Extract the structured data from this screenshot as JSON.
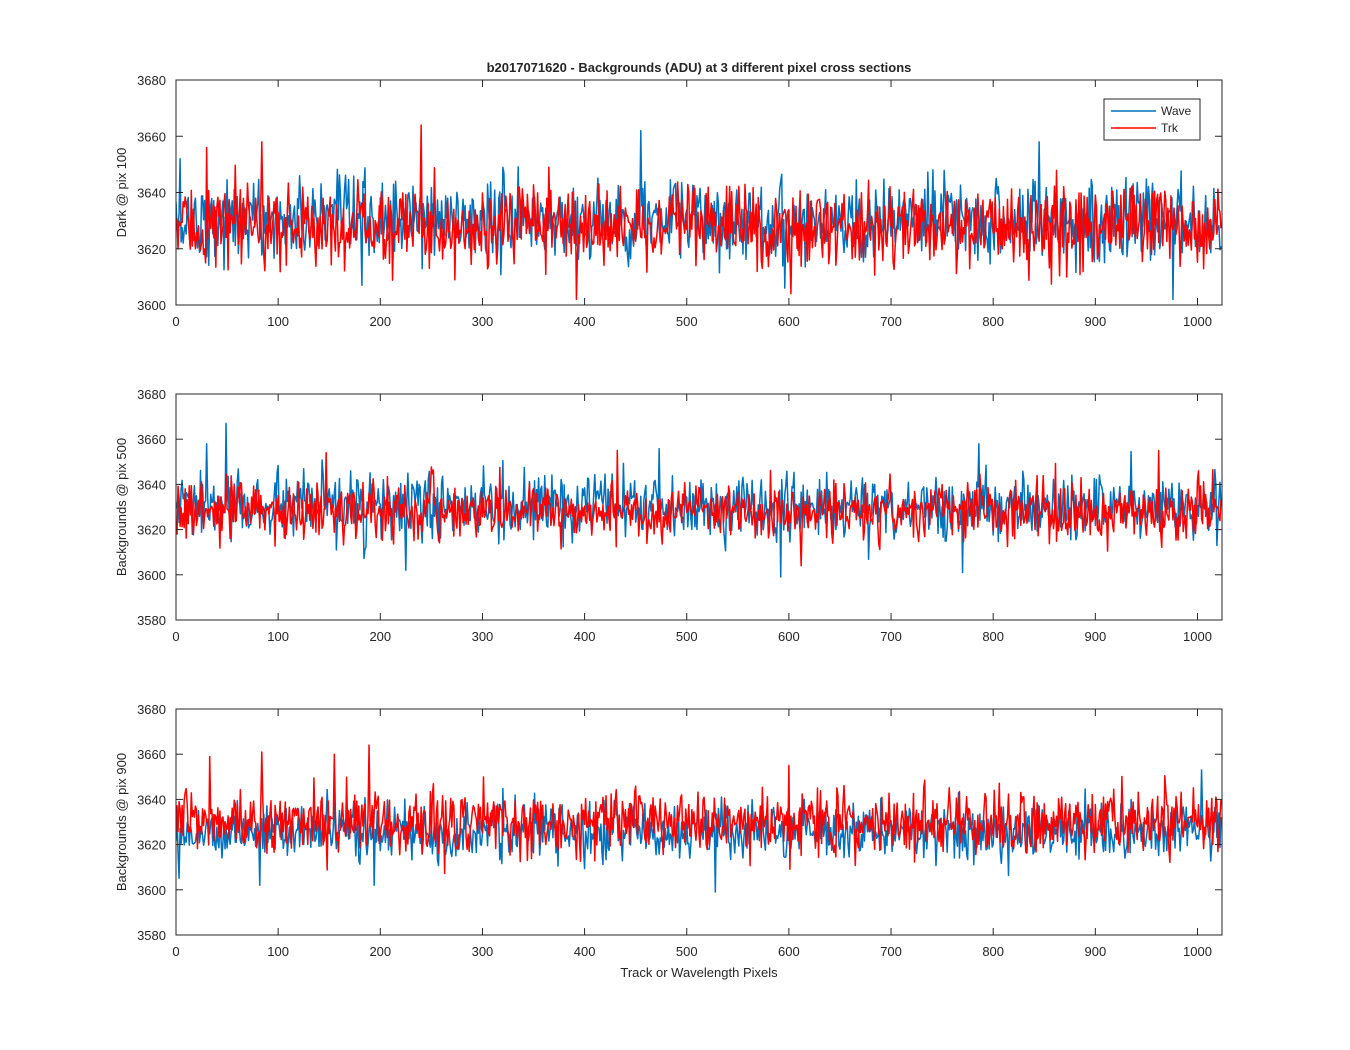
{
  "figure": {
    "title": "b2017071620 - Backgrounds (ADU) at 3 different pixel cross sections",
    "xlabel": "Track or Wavelength Pixels"
  },
  "colors": {
    "wave": "#0072BD",
    "trk": "#FF0000",
    "axis": "#262626",
    "background": "#ffffff"
  },
  "legend": {
    "placement": "top-right",
    "entries": [
      "Wave",
      "Trk"
    ]
  },
  "chart_data": [
    {
      "type": "line",
      "ylabel": "Dark @ pix 100",
      "xlim": [
        0,
        1024
      ],
      "ylim": [
        3600,
        3680
      ],
      "xticks": [
        0,
        100,
        200,
        300,
        400,
        500,
        600,
        700,
        800,
        900,
        1000
      ],
      "yticks": [
        3600,
        3620,
        3640,
        3660,
        3680
      ],
      "grid": false,
      "series": [
        {
          "name": "Wave",
          "color": "#0072BD",
          "n_points": 1024,
          "mean": 3630,
          "spread": 7,
          "min": 3602,
          "max": 3662,
          "peaks": [
            [
              4,
              3652
            ],
            [
              182,
              3607
            ],
            [
              455,
              3662
            ],
            [
              596,
              3606
            ],
            [
              845,
              3658
            ],
            [
              976,
              3602
            ]
          ]
        },
        {
          "name": "Trk",
          "color": "#FF0000",
          "n_points": 1024,
          "mean": 3628,
          "spread": 7,
          "min": 3602,
          "max": 3664,
          "peaks": [
            [
              30,
              3656
            ],
            [
              84,
              3658
            ],
            [
              240,
              3664
            ],
            [
              392,
              3602
            ],
            [
              365,
              3649
            ],
            [
              602,
              3604
            ]
          ]
        }
      ]
    },
    {
      "type": "line",
      "ylabel": "Backgrounds @ pix 500",
      "xlim": [
        0,
        1024
      ],
      "ylim": [
        3580,
        3680
      ],
      "xticks": [
        0,
        100,
        200,
        300,
        400,
        500,
        600,
        700,
        800,
        900,
        1000
      ],
      "yticks": [
        3580,
        3600,
        3620,
        3640,
        3660,
        3680
      ],
      "grid": false,
      "series": [
        {
          "name": "Wave",
          "color": "#0072BD",
          "n_points": 1024,
          "mean": 3630,
          "spread": 7,
          "min": 3599,
          "max": 3667,
          "peaks": [
            [
              30,
              3658
            ],
            [
              49,
              3667
            ],
            [
              225,
              3602
            ],
            [
              592,
              3599
            ],
            [
              770,
              3601
            ],
            [
              786,
              3658
            ]
          ]
        },
        {
          "name": "Trk",
          "color": "#FF0000",
          "n_points": 1024,
          "mean": 3628,
          "spread": 6,
          "min": 3604,
          "max": 3655,
          "peaks": [
            [
              147,
              3654
            ],
            [
              432,
              3655
            ],
            [
              612,
              3604
            ],
            [
              962,
              3655
            ]
          ]
        }
      ]
    },
    {
      "type": "line",
      "ylabel": "Backgrounds @ pix 900",
      "xlim": [
        0,
        1024
      ],
      "ylim": [
        3580,
        3680
      ],
      "xticks": [
        0,
        100,
        200,
        300,
        400,
        500,
        600,
        700,
        800,
        900,
        1000
      ],
      "yticks": [
        3580,
        3600,
        3620,
        3640,
        3660,
        3680
      ],
      "grid": false,
      "series": [
        {
          "name": "Wave",
          "color": "#0072BD",
          "n_points": 1024,
          "mean": 3626,
          "spread": 6,
          "min": 3599,
          "max": 3653,
          "peaks": [
            [
              82,
              3602
            ],
            [
              194,
              3602
            ],
            [
              528,
              3599
            ],
            [
              1004,
              3653
            ]
          ]
        },
        {
          "name": "Trk",
          "color": "#FF0000",
          "n_points": 1024,
          "mean": 3630,
          "spread": 7,
          "min": 3604,
          "max": 3664,
          "peaks": [
            [
              33,
              3659
            ],
            [
              84,
              3661
            ],
            [
              155,
              3660
            ],
            [
              189,
              3664
            ],
            [
              600,
              3655
            ]
          ]
        }
      ]
    }
  ]
}
